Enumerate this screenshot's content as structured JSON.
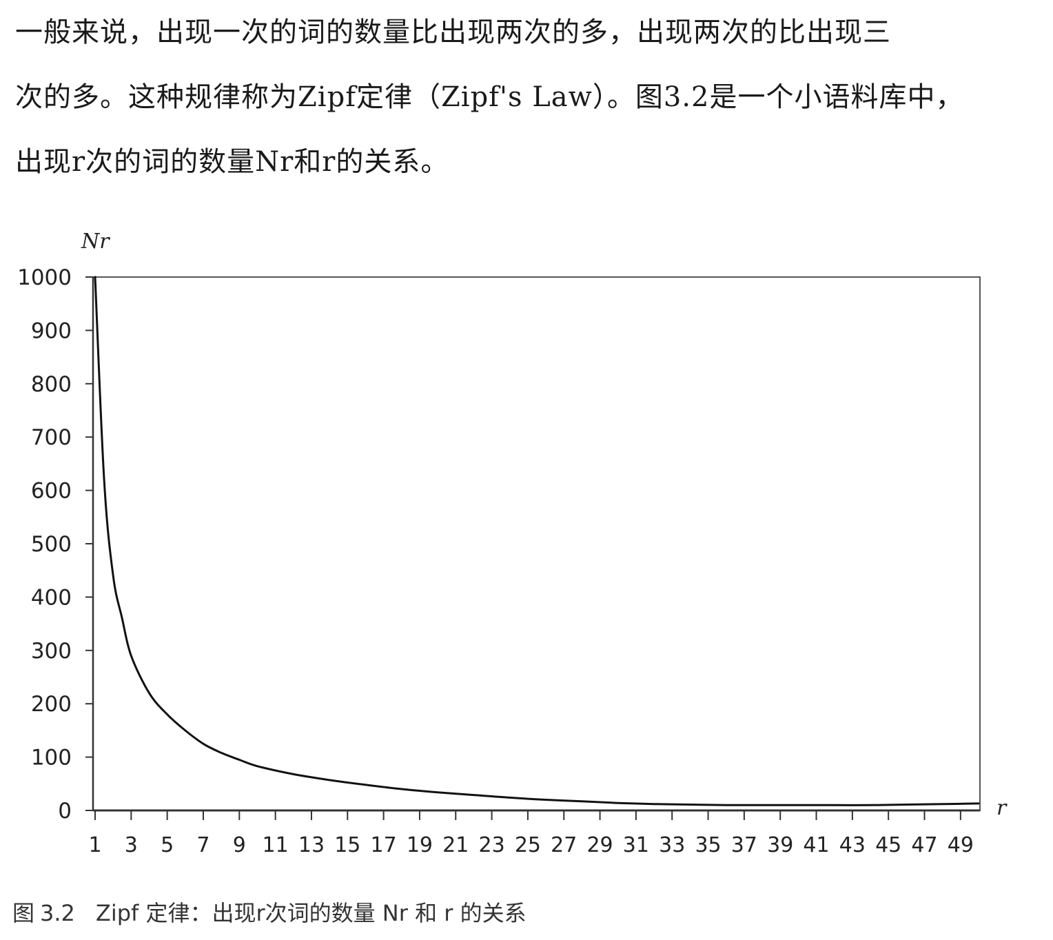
{
  "text": {
    "lines": [
      "一般来说，出现一次的词的数量比出现两次的多，出现两次的比出现三",
      "次的多。这种规律称为Zipf定律（Zipf's Law）。图3.2是一个小语料库中，",
      "出现r次的词的数量Nr和r的关系。"
    ]
  },
  "caption": {
    "label": "图",
    "number": "3.2",
    "text": "Zipf 定律：出现r次词的数量 Nr 和 r 的关系"
  },
  "chart_data": {
    "type": "line",
    "ylabel": "Nr",
    "xlabel": "r",
    "xlim": [
      1,
      50
    ],
    "ylim": [
      0,
      1000
    ],
    "yticks": [
      0,
      100,
      200,
      300,
      400,
      500,
      600,
      700,
      800,
      900,
      1000
    ],
    "xtick_labels": [
      1,
      3,
      5,
      7,
      9,
      11,
      13,
      15,
      17,
      19,
      21,
      23,
      25,
      27,
      29,
      31,
      33,
      35,
      37,
      39,
      41,
      43,
      45,
      47,
      49
    ],
    "grid": false,
    "series": [
      {
        "x": [
          1,
          1.5,
          2,
          2.5,
          3,
          4,
          5,
          6,
          7,
          8,
          9,
          10,
          12,
          14,
          16,
          18,
          20,
          22,
          24,
          26,
          28,
          30,
          32,
          34,
          36,
          38,
          40,
          42,
          44,
          46,
          48,
          50
        ],
        "values": [
          1000,
          620,
          440,
          360,
          290,
          220,
          180,
          150,
          125,
          108,
          95,
          83,
          68,
          57,
          48,
          40,
          34,
          29,
          24,
          20,
          17,
          14,
          12,
          11,
          10,
          10,
          10,
          10,
          10,
          11,
          12,
          13
        ]
      }
    ]
  }
}
